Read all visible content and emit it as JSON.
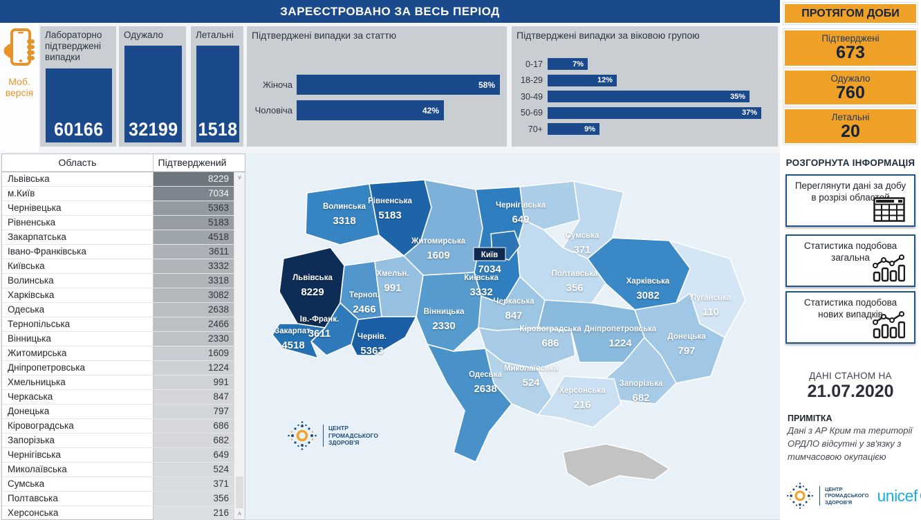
{
  "header": {
    "title": "ЗАРЕЄСТРОВАНО ЗА ВЕСЬ ПЕРІОД"
  },
  "mobile": {
    "line1": "Моб.",
    "line2": "версія"
  },
  "totals": [
    {
      "label": "Лабораторно підтверджені випадки",
      "value": "60166"
    },
    {
      "label": "Одужало",
      "value": "32199"
    },
    {
      "label": "Летальні",
      "value": "1518"
    }
  ],
  "charts": {
    "gender": {
      "title": "Підтверджені випадки за статтю",
      "bars": [
        {
          "label": "Жіноча",
          "pct": 58
        },
        {
          "label": "Чоловіча",
          "pct": 42
        }
      ]
    },
    "age": {
      "title": "Підтверджені випадки за віковою групою",
      "bars": [
        {
          "label": "0-17",
          "pct": 7
        },
        {
          "label": "18-29",
          "pct": 12
        },
        {
          "label": "30-49",
          "pct": 35
        },
        {
          "label": "50-69",
          "pct": 37
        },
        {
          "label": "70+",
          "pct": 9
        }
      ]
    }
  },
  "table": {
    "headers": [
      "Область",
      "Підтверджений"
    ],
    "rows": [
      [
        "Львівська",
        8229
      ],
      [
        "м.Київ",
        7034
      ],
      [
        "Чернівецька",
        5363
      ],
      [
        "Рівненська",
        5183
      ],
      [
        "Закарпатська",
        4518
      ],
      [
        "Івано-Франківська",
        3611
      ],
      [
        "Київська",
        3332
      ],
      [
        "Волинська",
        3318
      ],
      [
        "Харківська",
        3082
      ],
      [
        "Одеська",
        2638
      ],
      [
        "Тернопільська",
        2466
      ],
      [
        "Вінницька",
        2330
      ],
      [
        "Житомирська",
        1609
      ],
      [
        "Дніпропетровська",
        1224
      ],
      [
        "Хмельницька",
        991
      ],
      [
        "Черкаська",
        847
      ],
      [
        "Донецька",
        797
      ],
      [
        "Кіровоградська",
        686
      ],
      [
        "Запорізька",
        682
      ],
      [
        "Чернігівська",
        649
      ],
      [
        "Миколаївська",
        524
      ],
      [
        "Сумська",
        371
      ],
      [
        "Полтавська",
        356
      ],
      [
        "Херсонська",
        216
      ]
    ]
  },
  "daily": {
    "title": "ПРОТЯГОМ ДОБИ",
    "cards": [
      {
        "label": "Підтверджені",
        "value": "673"
      },
      {
        "label": "Одужало",
        "value": "760"
      },
      {
        "label": "Летальні",
        "value": "20"
      }
    ]
  },
  "info": {
    "heading": "РОЗГОРНУТА ІНФОРМАЦІЯ",
    "buttons": [
      {
        "label": "Переглянути дані за добу в розрізі областей",
        "icon": "table-icon"
      },
      {
        "label": "Статистика подобова загальна",
        "icon": "chart-icon"
      },
      {
        "label": "Статистика подобова нових випадків",
        "icon": "chart-icon"
      }
    ]
  },
  "asof": {
    "label": "ДАНІ СТАНОМ НА",
    "date": "21.07.2020"
  },
  "note": {
    "heading": "ПРИМІТКА",
    "text": "Дані з АР Крим та території ОРДЛО відсутні у зв'язку з тимчасовою окупацією"
  },
  "logos": {
    "phc": [
      "ЦЕНТР",
      "ГРОМАДСЬКОГО",
      "ЗДОРОВ'Я"
    ],
    "unicef": "unicef"
  },
  "colors": {
    "navy": "#1b4a8c",
    "dark_navy": "#0f2b52",
    "orange": "#efa026",
    "panel_gray": "#c9ced3",
    "map_bg": "#e9f1f8",
    "unicef_blue": "#1cabe2",
    "crimea_gray": "#c3c3c3"
  },
  "map": {
    "regions": [
      {
        "id": "volyn",
        "name": "Волинська",
        "value": 3318,
        "color": "#3684c2"
      },
      {
        "id": "rivne",
        "name": "Рівненська",
        "value": 5183,
        "color": "#1e64a9"
      },
      {
        "id": "zhytomyr",
        "name": "Житомирська",
        "value": 1609,
        "color": "#7db1da"
      },
      {
        "id": "kyivska",
        "name": "Київська",
        "value": 3332,
        "color": "#2f7fc0"
      },
      {
        "id": "chernihiv",
        "name": "Чернігівська",
        "value": 649,
        "color": "#aacde8"
      },
      {
        "id": "sumy",
        "name": "Сумська",
        "value": 371,
        "color": "#bfd9ef"
      },
      {
        "id": "poltava",
        "name": "Полтавська",
        "value": 356,
        "color": "#c0daef"
      },
      {
        "id": "kharkiv",
        "name": "Харківська",
        "value": 3082,
        "color": "#3a88c5"
      },
      {
        "id": "luhansk",
        "name": "Луганська",
        "value": 110,
        "color": "#d4e6f5"
      },
      {
        "id": "lviv",
        "name": "Львівська",
        "value": 8229,
        "color": "#0d2c56"
      },
      {
        "id": "ternopil",
        "name": "Терноп.",
        "value": 2466,
        "color": "#5096cc"
      },
      {
        "id": "khmelnytsk",
        "name": "Хмельн.",
        "value": 991,
        "color": "#95c0e2"
      },
      {
        "id": "vinnytsia",
        "name": "Вінницька",
        "value": 2330,
        "color": "#569bce"
      },
      {
        "id": "cherkasy",
        "name": "Черкаська",
        "value": 847,
        "color": "#9dc5e4"
      },
      {
        "id": "kirovohrad",
        "name": "Кіровоградська",
        "value": 686,
        "color": "#a7cbe7"
      },
      {
        "id": "dnipro",
        "name": "Дніпропетровська",
        "value": 1224,
        "color": "#8ab9de"
      },
      {
        "id": "donetsk",
        "name": "Донецька",
        "value": 797,
        "color": "#a0c7e5"
      },
      {
        "id": "zaporizhzhia",
        "name": "Запорізька",
        "value": 682,
        "color": "#a8cce8"
      },
      {
        "id": "mykolaiv",
        "name": "Миколаївська",
        "value": 524,
        "color": "#b2d2ea"
      },
      {
        "id": "kherson",
        "name": "Херсонська",
        "value": 216,
        "color": "#cae0f2"
      },
      {
        "id": "odesa",
        "name": "Одеська",
        "value": 2638,
        "color": "#4991c9"
      },
      {
        "id": "ivano",
        "name": "Ів.-Франк.",
        "value": 3611,
        "color": "#2e7abb"
      },
      {
        "id": "zakarpattia",
        "name": "Закарпат.",
        "value": 4518,
        "color": "#2471b3"
      },
      {
        "id": "chernivtsi",
        "name": "Чернів.",
        "value": 5363,
        "color": "#1a5fa5"
      },
      {
        "id": "kyiv_city",
        "name": "Київ",
        "value": 7034,
        "color": "#2d76b6",
        "label_box": true
      },
      {
        "id": "crimea",
        "name": "",
        "value": null,
        "color": "#c3c3c3"
      }
    ]
  }
}
